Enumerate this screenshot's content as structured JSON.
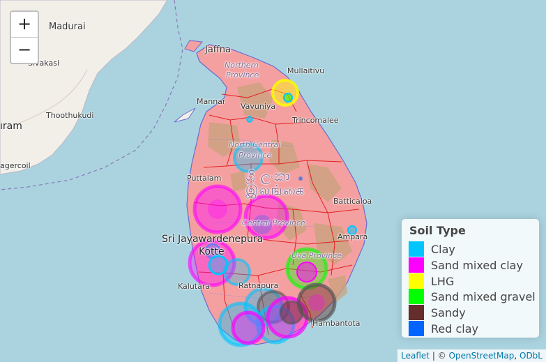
{
  "zoom": {
    "in_label": "+",
    "out_label": "−"
  },
  "place_labels": {
    "madurai": "Madurai",
    "sivakasi": "Sivakasi",
    "thoothukudi": "Thoothukudi",
    "puram": "ıram",
    "nagercoil": "agercoil",
    "jaffna": "Jaffna",
    "mullaitivu": "Mullaitivu",
    "mannar": "Mannar",
    "vavuniya": "Vavuniya",
    "trincomalee": "Trincomalee",
    "puttalam": "Puttalam",
    "batticaloa": "Batticaloa",
    "sri_jayawardenepura": "Sri Jayawardenepura",
    "kotte": "Kotte",
    "ampara": "Ampara",
    "kalutara": "Kalutara",
    "ratnapura": "Ratnapura",
    "hambantota": "Hambantota"
  },
  "province_labels": {
    "northern_1": "Northern",
    "northern_2": "Province",
    "north_central_1": "North Central",
    "north_central_2": "Province",
    "central": "Central Province",
    "uva": "Uva Province"
  },
  "country_label": {
    "line1": "ශ්‍රී ලංකා",
    "line2": "இலங்கை"
  },
  "legend": {
    "title": "Soil Type",
    "items": [
      {
        "label": "Clay",
        "color": "#00c5ff"
      },
      {
        "label": "Sand mixed clay",
        "color": "#ff00ff"
      },
      {
        "label": "LHG",
        "color": "#ffff00"
      },
      {
        "label": "Sand mixed gravel",
        "color": "#00ff00"
      },
      {
        "label": "Sandy",
        "color": "#632e2b"
      },
      {
        "label": "Red clay",
        "color": "#0064ff"
      }
    ]
  },
  "attribution": {
    "leaflet": "Leaflet",
    "separator": " | © ",
    "osm": "OpenStreetMap",
    "comma": ", ",
    "odbl": "ODbL"
  },
  "colors": {
    "sea": "#aad3df",
    "land": "#f2efe9",
    "country_fill": "#f5a0a0",
    "district_border": "#e02020",
    "forest": "#c8a27c"
  }
}
